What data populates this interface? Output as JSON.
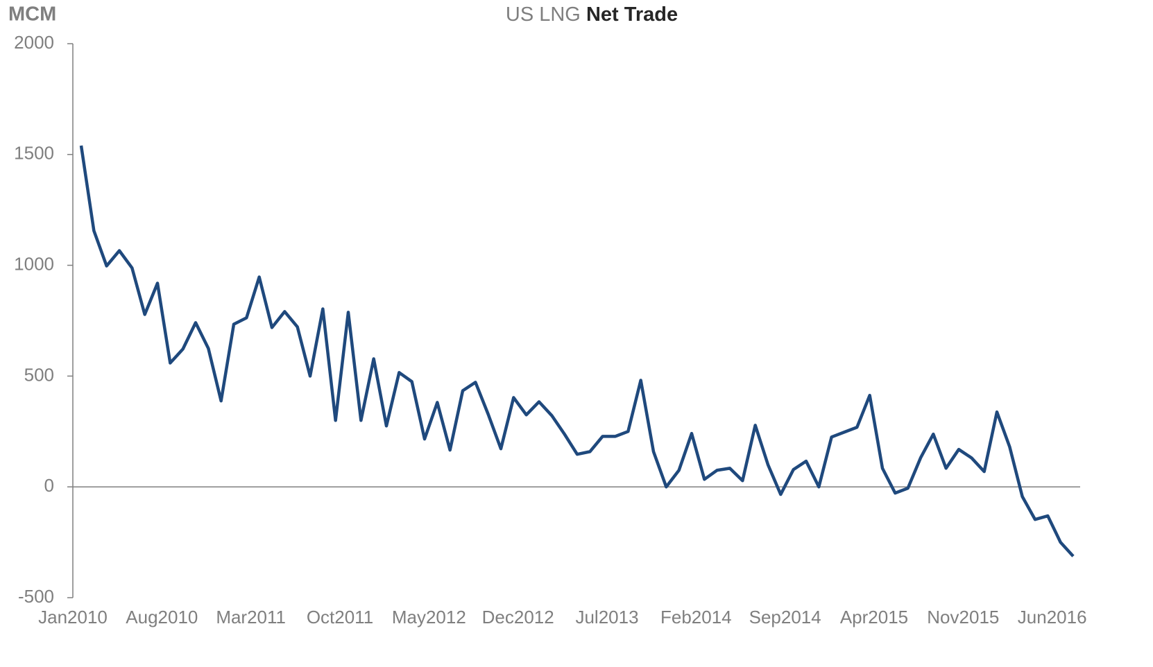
{
  "chart_data": {
    "type": "line",
    "title": [
      "US LNG",
      "Net Trade"
    ],
    "y_label": "MCM",
    "categories": [
      "Jan2010",
      null,
      null,
      null,
      null,
      null,
      null,
      "Aug2010",
      null,
      null,
      null,
      null,
      null,
      null,
      "Mar2011",
      null,
      null,
      null,
      null,
      null,
      null,
      "Oct2011",
      null,
      null,
      null,
      null,
      null,
      null,
      "May2012",
      null,
      null,
      null,
      null,
      null,
      null,
      "Dec2012",
      null,
      null,
      null,
      null,
      null,
      null,
      "Jul2013",
      null,
      null,
      null,
      null,
      null,
      null,
      "Feb2014",
      null,
      null,
      null,
      null,
      null,
      null,
      "Sep2014",
      null,
      null,
      null,
      null,
      null,
      null,
      "Apr2015",
      null,
      null,
      null,
      null,
      null,
      null,
      "Nov2015",
      null,
      null,
      null,
      null,
      null,
      null,
      "Jun2016",
      null
    ],
    "series": [
      {
        "name": "US LNG Net Trade",
        "color": "#1f497d",
        "values": [
          1540,
          1156,
          997,
          1066,
          988,
          778,
          919,
          559,
          622,
          741,
          625,
          388,
          734,
          763,
          947,
          719,
          791,
          722,
          500,
          803,
          300,
          788,
          300,
          578,
          275,
          516,
          475,
          216,
          381,
          166,
          434,
          472,
          328,
          172,
          403,
          325,
          384,
          322,
          238,
          147,
          159,
          228,
          228,
          250,
          481,
          159,
          0,
          75,
          241,
          34,
          75,
          84,
          28,
          278,
          100,
          -34,
          78,
          116,
          0,
          225,
          247,
          269,
          413,
          84,
          -28,
          -6,
          131,
          238,
          84,
          169,
          131,
          69,
          338,
          181,
          -44,
          -147,
          -131,
          -250,
          -313
        ]
      }
    ],
    "ylim": [
      -500,
      2000
    ],
    "yticks": [
      -500,
      0,
      500,
      1000,
      1500,
      2000
    ],
    "grid": false
  }
}
